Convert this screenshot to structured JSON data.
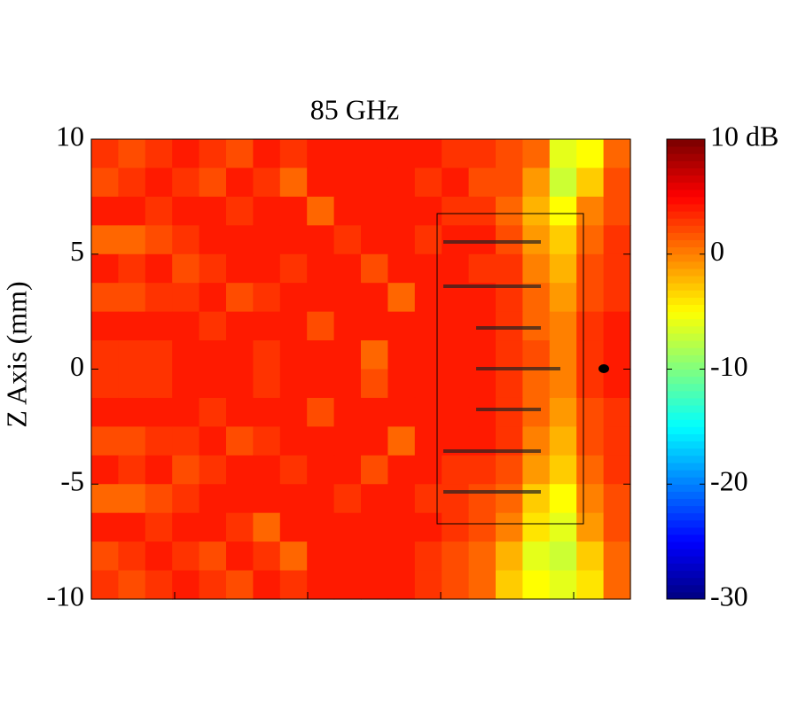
{
  "chart_data": {
    "type": "heatmap",
    "title": "85 GHz",
    "y_label": "Z Axis (mm)",
    "ylim": [
      -10,
      10
    ],
    "yticks": [
      -10,
      -5,
      0,
      5,
      10
    ],
    "colormap": "jet",
    "zlim": [
      -30,
      10
    ],
    "zticks": [
      -30,
      -20,
      -10,
      0,
      {
        "value": 10,
        "label": "10 dB"
      }
    ],
    "values": [
      [
        3,
        2,
        3,
        4,
        3,
        2,
        4,
        3,
        4,
        4,
        4,
        4,
        4,
        3,
        3,
        2,
        1,
        -6,
        -5,
        1
      ],
      [
        2,
        3,
        4,
        3,
        2,
        4,
        3,
        1,
        4,
        4,
        4,
        4,
        3,
        4,
        2,
        2,
        -1,
        -7,
        -3,
        2
      ],
      [
        4,
        4,
        3,
        4,
        4,
        3,
        4,
        4,
        1,
        4,
        4,
        4,
        4,
        3,
        3,
        1,
        -2,
        -5,
        0,
        2
      ],
      [
        1,
        1,
        2,
        3,
        4,
        4,
        4,
        4,
        4,
        3,
        4,
        4,
        3,
        4,
        4,
        2,
        -1,
        -3,
        1,
        3
      ],
      [
        4,
        3,
        4,
        2,
        3,
        4,
        4,
        3,
        4,
        4,
        2,
        4,
        4,
        4,
        3,
        3,
        0,
        -2,
        2,
        3
      ],
      [
        2,
        2,
        3,
        3,
        4,
        2,
        3,
        4,
        4,
        4,
        4,
        1,
        4,
        4,
        4,
        3,
        1,
        -1,
        2,
        3
      ],
      [
        4,
        4,
        4,
        4,
        3,
        4,
        4,
        4,
        2,
        4,
        4,
        4,
        4,
        4,
        4,
        3,
        1,
        0,
        3,
        4
      ],
      [
        3,
        3,
        3,
        4,
        4,
        4,
        3,
        4,
        4,
        4,
        1,
        4,
        4,
        4,
        4,
        3,
        2,
        0,
        3,
        4
      ],
      [
        3,
        3,
        3,
        4,
        4,
        4,
        3,
        4,
        4,
        4,
        2,
        4,
        4,
        4,
        4,
        3,
        1,
        0,
        3,
        4
      ],
      [
        4,
        4,
        4,
        4,
        3,
        4,
        4,
        4,
        2,
        4,
        4,
        4,
        4,
        4,
        4,
        3,
        1,
        -1,
        2,
        3
      ],
      [
        2,
        2,
        3,
        3,
        4,
        2,
        3,
        4,
        4,
        4,
        4,
        1,
        4,
        4,
        4,
        3,
        0,
        -2,
        2,
        3
      ],
      [
        4,
        3,
        4,
        2,
        3,
        4,
        4,
        3,
        4,
        4,
        2,
        4,
        4,
        3,
        3,
        2,
        -1,
        -3,
        1,
        3
      ],
      [
        1,
        1,
        2,
        3,
        4,
        4,
        4,
        4,
        4,
        3,
        4,
        4,
        3,
        3,
        2,
        1,
        -3,
        -5,
        0,
        2
      ],
      [
        4,
        4,
        3,
        4,
        4,
        3,
        1,
        4,
        4,
        4,
        4,
        4,
        4,
        3,
        2,
        0,
        -4,
        -6,
        -1,
        2
      ],
      [
        2,
        3,
        4,
        3,
        2,
        4,
        3,
        1,
        4,
        4,
        4,
        4,
        3,
        2,
        1,
        -2,
        -6,
        -7,
        -3,
        1
      ],
      [
        3,
        2,
        3,
        4,
        3,
        2,
        4,
        3,
        4,
        4,
        4,
        4,
        3,
        2,
        1,
        -3,
        -5,
        -6,
        -4,
        1
      ]
    ]
  }
}
